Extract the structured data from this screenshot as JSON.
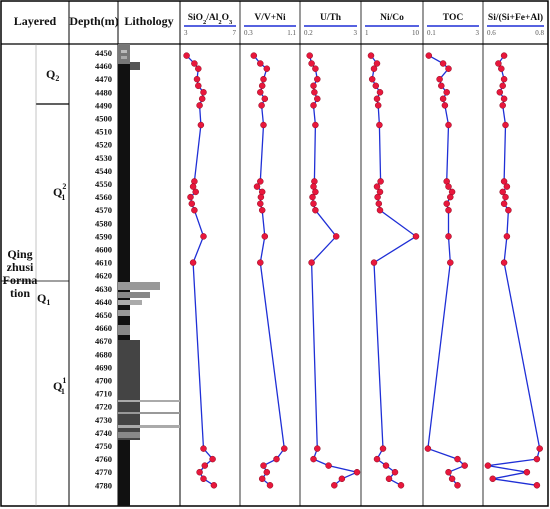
{
  "headers": {
    "layered": "Layered",
    "depth": "Depth(m)",
    "lithology": "Lithology"
  },
  "strata": {
    "formation_lines": [
      "Qing",
      "zhusi",
      "Forma",
      "tion"
    ],
    "q1": {
      "base": "Q",
      "sub": "1"
    },
    "q2": {
      "base": "Q",
      "sub": "2"
    },
    "q1_2": {
      "base": "Q",
      "sub": "1",
      "sup": "2"
    },
    "q1_1": {
      "base": "Q",
      "sub": "1",
      "sup": "1"
    }
  },
  "depth_labels": [
    "4450",
    "4460",
    "4470",
    "4480",
    "4490",
    "4500",
    "4510",
    "4520",
    "4530",
    "4540",
    "4550",
    "4560",
    "4570",
    "4580",
    "4590",
    "4600",
    "4610",
    "4620",
    "4630",
    "4640",
    "4650",
    "4660",
    "4670",
    "4680",
    "4690",
    "4700",
    "4710",
    "4720",
    "4730",
    "4740",
    "4750",
    "4760",
    "4770",
    "4780"
  ],
  "colors": {
    "line": "#1f2fd6",
    "point": "#e8173c",
    "point_edge": "#8a0a22",
    "border": "#000000"
  },
  "chart_data": {
    "type": "line",
    "ylabel": "Depth(m)",
    "ylim": [
      4445,
      4785
    ],
    "y_reversed": true,
    "depths": [
      4452,
      4458,
      4462,
      4470,
      4475,
      4480,
      4485,
      4490,
      4505,
      4548,
      4552,
      4556,
      4560,
      4565,
      4570,
      4590,
      4610,
      4752,
      4760,
      4765,
      4770,
      4775,
      4780
    ],
    "series": [
      {
        "name": "SiO2/Al2O3",
        "title": {
          "parts": [
            [
              "SiO",
              ""
            ],
            [
              "2",
              "sub"
            ],
            [
              "/Al",
              ""
            ],
            [
              "2",
              "sub"
            ],
            [
              "O",
              ""
            ],
            [
              "3",
              "sub"
            ]
          ]
        },
        "xmin": 3,
        "xmax": 7,
        "tick_labels": [
          "3",
          "7"
        ],
        "values": [
          3.2,
          3.8,
          4.1,
          4.0,
          4.1,
          4.5,
          4.4,
          4.2,
          4.3,
          3.8,
          3.7,
          3.9,
          3.5,
          3.6,
          3.8,
          4.5,
          3.7,
          4.5,
          5.2,
          4.6,
          4.2,
          4.5,
          5.3
        ]
      },
      {
        "name": "V/V+Ni",
        "title": {
          "parts": [
            [
              "V/V+Ni",
              ""
            ]
          ]
        },
        "xmin": 0.3,
        "xmax": 1.1,
        "tick_labels": [
          "0.3",
          "1.1"
        ],
        "values": [
          0.45,
          0.55,
          0.65,
          0.6,
          0.58,
          0.55,
          0.62,
          0.57,
          0.6,
          0.55,
          0.5,
          0.58,
          0.56,
          0.55,
          0.58,
          0.62,
          0.55,
          0.92,
          0.8,
          0.6,
          0.65,
          0.58,
          0.7
        ]
      },
      {
        "name": "U/Th",
        "title": {
          "parts": [
            [
              "U/Th",
              ""
            ]
          ]
        },
        "xmin": 0.2,
        "xmax": 3,
        "tick_labels": [
          "0.2",
          "3"
        ],
        "values": [
          0.5,
          0.6,
          0.8,
          0.9,
          0.7,
          0.75,
          0.9,
          0.7,
          0.8,
          0.75,
          0.7,
          0.8,
          0.65,
          0.7,
          0.8,
          1.9,
          0.6,
          0.9,
          0.7,
          1.5,
          3.0,
          2.2,
          1.8
        ]
      },
      {
        "name": "Ni/Co",
        "title": {
          "parts": [
            [
              "Ni/Co",
              ""
            ]
          ]
        },
        "xmin": 1,
        "xmax": 10,
        "tick_labels": [
          "1",
          "10"
        ],
        "values": [
          2.0,
          3.0,
          2.5,
          2.2,
          2.8,
          3.5,
          3.0,
          3.2,
          3.4,
          3.6,
          3.0,
          3.5,
          3.1,
          3.3,
          3.5,
          9.5,
          2.5,
          4.0,
          3.0,
          4.5,
          6.0,
          5.0,
          7.0
        ]
      },
      {
        "name": "TOC",
        "title": {
          "parts": [
            [
              "TOC",
              ""
            ]
          ]
        },
        "xmin": 0.1,
        "xmax": 3,
        "tick_labels": [
          "0.1",
          "3"
        ],
        "values": [
          0.2,
          1.0,
          1.3,
          0.8,
          0.9,
          1.2,
          1.0,
          1.1,
          1.3,
          1.2,
          1.3,
          1.5,
          1.4,
          1.2,
          1.3,
          1.3,
          1.4,
          0.15,
          1.8,
          2.2,
          1.3,
          1.5,
          1.8
        ]
      },
      {
        "name": "Si/(Si+Fe+Al)",
        "title": {
          "parts": [
            [
              "Si/(Si+Fe+Al)",
              ""
            ]
          ]
        },
        "xmin": 0.6,
        "xmax": 0.8,
        "tick_labels": [
          "0.6",
          "0.8"
        ],
        "values": [
          0.66,
          0.64,
          0.65,
          0.66,
          0.655,
          0.645,
          0.66,
          0.655,
          0.665,
          0.66,
          0.67,
          0.655,
          0.665,
          0.66,
          0.675,
          0.67,
          0.66,
          0.785,
          0.775,
          0.603,
          0.74,
          0.62,
          0.775
        ]
      }
    ]
  }
}
